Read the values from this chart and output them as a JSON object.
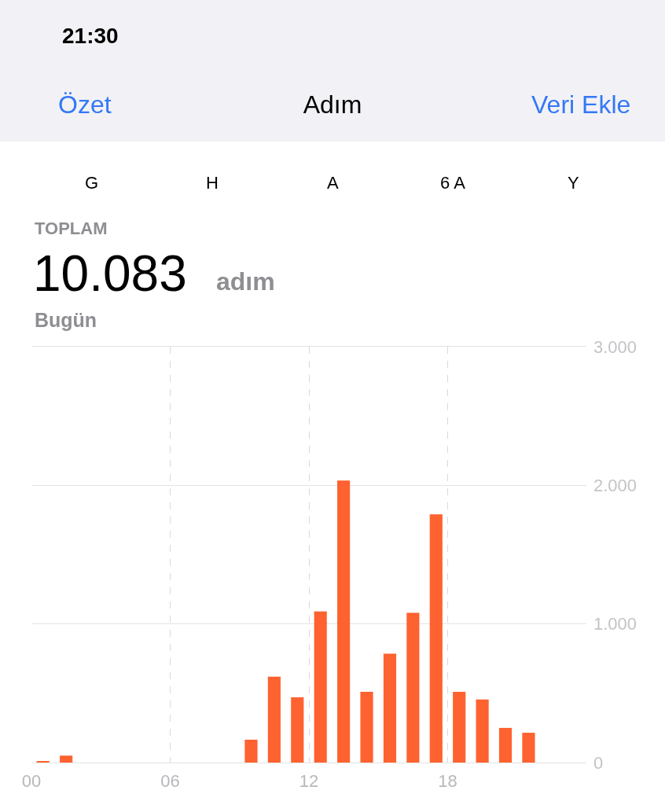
{
  "chart_data": {
    "type": "bar",
    "title": "Adım",
    "annotations": [
      "21:30",
      "Özet",
      "Veri Ekle",
      "G",
      "H",
      "A",
      "6 A",
      "Y",
      "TOPLAM",
      "10.083",
      "adım",
      "Bugün"
    ],
    "x": [
      0.5,
      1.5,
      2.5,
      3.5,
      4.5,
      5.5,
      6.5,
      7.5,
      8.5,
      9.5,
      10.5,
      11.5,
      12.5,
      13.5,
      14.5,
      15.5,
      16.5,
      17.5,
      18.5,
      19.5,
      20.5,
      21.5,
      22.5,
      23.5
    ],
    "values": [
      10,
      50,
      0,
      0,
      0,
      0,
      0,
      0,
      0,
      165,
      620,
      470,
      1090,
      2035,
      510,
      785,
      1080,
      1790,
      510,
      455,
      250,
      215,
      0,
      0
    ],
    "color": "#fe6230",
    "xlim": [
      0,
      24
    ],
    "xticks": [
      {
        "value": 0,
        "label": "00"
      },
      {
        "value": 6,
        "label": "06"
      },
      {
        "value": 12,
        "label": "12"
      },
      {
        "value": 18,
        "label": "18"
      }
    ],
    "ylim": [
      0,
      3000
    ],
    "yticks": [
      0,
      {
        "value": 1000,
        "label": "1.000"
      },
      {
        "value": 2000,
        "label": "2.000"
      },
      {
        "value": 3000,
        "label": "3.000"
      }
    ],
    "grid": true,
    "legend": false
  }
}
